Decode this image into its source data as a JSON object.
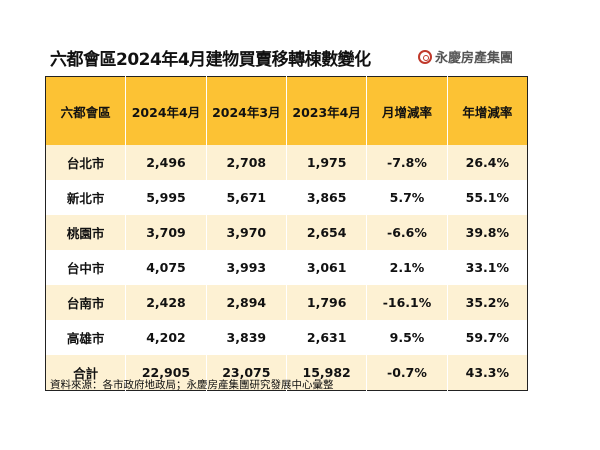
{
  "title": "六都會區2024年4月建物買賣移轉棟數變化",
  "logo": {
    "text": "永慶房產集團",
    "icon": "yungching-logo-icon",
    "color": "#c0392b"
  },
  "colors": {
    "header_bg": "#fcc234",
    "odd_row_bg": "#fdf1d3"
  },
  "table": {
    "headers": [
      "六都會區",
      "2024年4月",
      "2024年3月",
      "2023年4月",
      "月增減率",
      "年增減率"
    ],
    "rows": [
      [
        "台北市",
        "2,496",
        "2,708",
        "1,975",
        "-7.8%",
        "26.4%"
      ],
      [
        "新北市",
        "5,995",
        "5,671",
        "3,865",
        "5.7%",
        "55.1%"
      ],
      [
        "桃園市",
        "3,709",
        "3,970",
        "2,654",
        "-6.6%",
        "39.8%"
      ],
      [
        "台中市",
        "4,075",
        "3,993",
        "3,061",
        "2.1%",
        "33.1%"
      ],
      [
        "台南市",
        "2,428",
        "2,894",
        "1,796",
        "-16.1%",
        "35.2%"
      ],
      [
        "高雄市",
        "4,202",
        "3,839",
        "2,631",
        "9.5%",
        "59.7%"
      ],
      [
        "合計",
        "22,905",
        "23,075",
        "15,982",
        "-0.7%",
        "43.3%"
      ]
    ]
  },
  "footer": "資料來源：各市政府地政局；永慶房產集團研究發展中心彙整"
}
